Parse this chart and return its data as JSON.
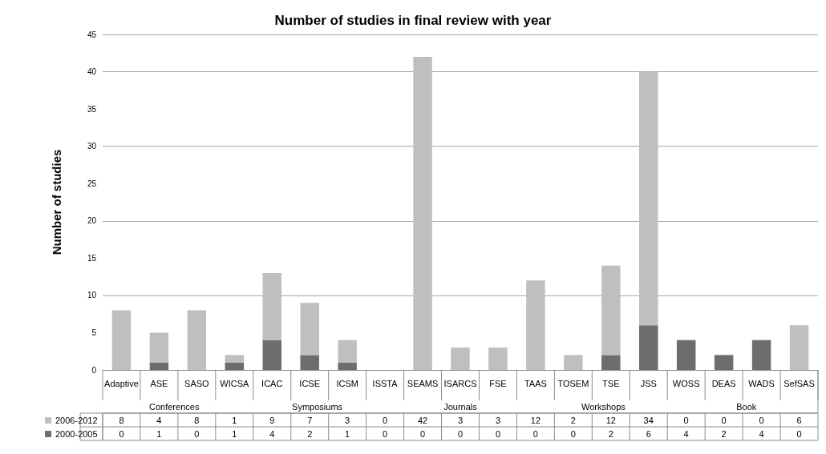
{
  "chart_data": {
    "type": "bar",
    "title": "Number of studies in final review with year",
    "ylabel": "Number of studies",
    "categories": [
      "Adaptive",
      "ASE",
      "SASO",
      "WICSA",
      "ICAC",
      "ICSE",
      "ICSM",
      "ISSTA",
      "SEAMS",
      "ISARCS",
      "FSE",
      "TAAS",
      "TOSEM",
      "TSE",
      "JSS",
      "WOSS",
      "DEAS",
      "WADS",
      "SefSAS"
    ],
    "series": [
      {
        "name": "2000-2005",
        "color": "#6d6d6d",
        "values": [
          0,
          1,
          0,
          1,
          4,
          2,
          1,
          0,
          0,
          0,
          0,
          0,
          0,
          2,
          6,
          4,
          2,
          4,
          0
        ]
      },
      {
        "name": "2006-2012",
        "color": "#bfbfbf",
        "values": [
          8,
          4,
          8,
          1,
          9,
          7,
          3,
          0,
          42,
          3,
          3,
          12,
          2,
          12,
          34,
          0,
          0,
          0,
          6
        ]
      }
    ],
    "stacked": true,
    "ylim": [
      0,
      45
    ],
    "yticks": [
      0,
      5,
      10,
      15,
      20,
      25,
      30,
      35,
      40,
      45
    ],
    "grid": "y",
    "legend": "bottom",
    "data_labels": true,
    "annotations": [
      "Conferences",
      "Symposiums",
      "Journals",
      "Workshops",
      "Book"
    ]
  }
}
